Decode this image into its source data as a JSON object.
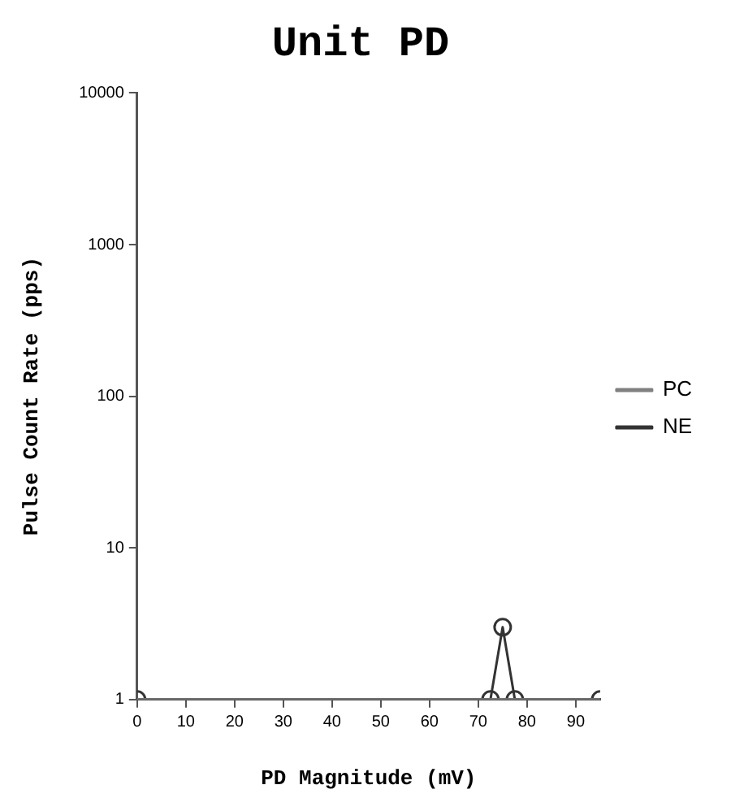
{
  "chart_data": {
    "type": "line",
    "title": "Unit PD",
    "xlabel": "PD Magnitude (mV)",
    "ylabel": "Pulse Count Rate (pps)",
    "xlim": [
      0,
      95
    ],
    "xticks": [
      0,
      10,
      20,
      30,
      40,
      50,
      60,
      70,
      80,
      90
    ],
    "ylim": [
      1,
      10000
    ],
    "yticks": [
      1,
      10,
      100,
      1000,
      10000
    ],
    "log": "y",
    "grid": false,
    "legend": "right",
    "series": [
      {
        "name": "PC",
        "color": "#808080",
        "marker": "none",
        "x": [
          0,
          95
        ],
        "values": [
          1,
          1
        ]
      },
      {
        "name": "NE",
        "color": "#333333",
        "marker": "circle",
        "x": [
          0,
          72.5,
          75,
          77.5,
          95
        ],
        "values": [
          1,
          1,
          3,
          1,
          1
        ]
      }
    ]
  }
}
